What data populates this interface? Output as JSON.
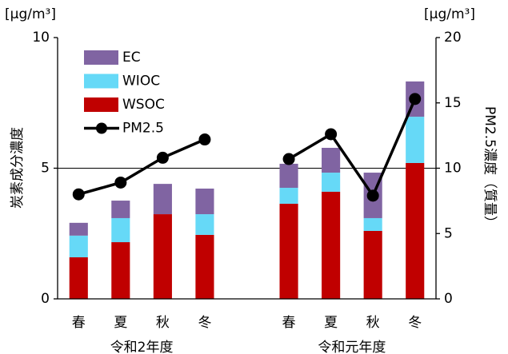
{
  "chart_data": {
    "type": "bar",
    "stacked": true,
    "y_unit": "[μg/m³]",
    "y2_unit": "[μg/m³]",
    "ylabel": "炭素成分濃度",
    "y2label": "PM2.5濃度（質量）",
    "categories": [
      "春",
      "夏",
      "秋",
      "冬",
      null,
      "春",
      "夏",
      "秋",
      "冬"
    ],
    "group_labels": [
      "令和2年度",
      "令和元年度"
    ],
    "series": [
      {
        "name": "WSOC",
        "color": "#c00000",
        "values": [
          1.59,
          2.17,
          3.24,
          2.45,
          null,
          3.64,
          4.1,
          2.6,
          5.2
        ]
      },
      {
        "name": "WIOC",
        "color": "#66d9f7",
        "values": [
          0.83,
          0.92,
          0,
          0.79,
          null,
          0.61,
          0.73,
          0.49,
          1.77
        ]
      },
      {
        "name": "EC",
        "color": "#8064a2",
        "values": [
          0.49,
          0.67,
          1.16,
          0.98,
          null,
          0.92,
          0.95,
          1.74,
          1.35
        ]
      },
      {
        "name": "PM2.5",
        "type": "line",
        "axis": "y2",
        "color": "#000000",
        "values": [
          8.0,
          8.9,
          10.8,
          12.2,
          null,
          10.7,
          12.6,
          7.9,
          15.3
        ]
      }
    ],
    "ylim": [
      0,
      10
    ],
    "yticks": [
      0,
      5,
      10
    ],
    "y2lim": [
      0,
      20
    ],
    "y2ticks": [
      0,
      5,
      10,
      15,
      20
    ],
    "grid": true,
    "legend": "top-left"
  }
}
